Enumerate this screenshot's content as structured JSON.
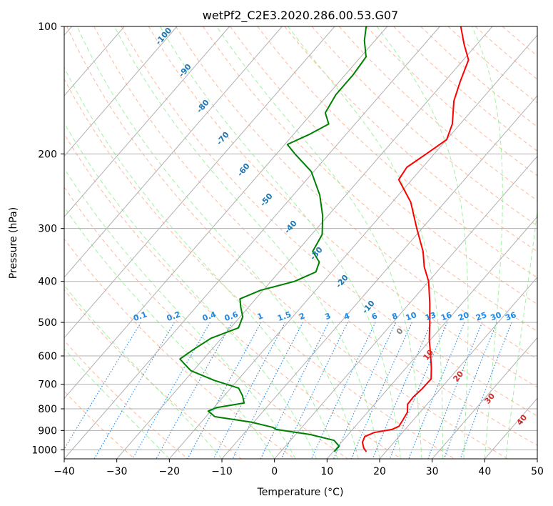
{
  "chart_data": {
    "type": "line",
    "title": "wetPf2_C2E3.2020.286.00.53.G07",
    "xlabel": "Temperature (°C)",
    "ylabel": "Pressure (hPa)",
    "xlim": [
      -40,
      50
    ],
    "ylim": [
      1050,
      100
    ],
    "y_scale": "log",
    "grid": true,
    "x_ticks": [
      -40,
      -30,
      -20,
      -10,
      0,
      10,
      20,
      30,
      40,
      50
    ],
    "y_ticks": [
      100,
      200,
      300,
      400,
      500,
      600,
      700,
      800,
      900,
      1000
    ],
    "series": [
      {
        "role": "temperature",
        "color": "#ff0000",
        "points": [
          {
            "p": 1010,
            "t": 16.3
          },
          {
            "p": 990,
            "t": 15.2
          },
          {
            "p": 960,
            "t": 14.0
          },
          {
            "p": 930,
            "t": 13.5
          },
          {
            "p": 910,
            "t": 14.6
          },
          {
            "p": 895,
            "t": 17.5
          },
          {
            "p": 880,
            "t": 18.3
          },
          {
            "p": 850,
            "t": 18.0
          },
          {
            "p": 815,
            "t": 17.6
          },
          {
            "p": 780,
            "t": 16.3
          },
          {
            "p": 750,
            "t": 16.2
          },
          {
            "p": 720,
            "t": 16.5
          },
          {
            "p": 680,
            "t": 16.6
          },
          {
            "p": 640,
            "t": 14.8
          },
          {
            "p": 600,
            "t": 12.7
          },
          {
            "p": 550,
            "t": 9.8
          },
          {
            "p": 500,
            "t": 7.0
          },
          {
            "p": 450,
            "t": 3.8
          },
          {
            "p": 400,
            "t": 0.0
          },
          {
            "p": 370,
            "t": -3.2
          },
          {
            "p": 340,
            "t": -6.0
          },
          {
            "p": 300,
            "t": -11.0
          },
          {
            "p": 260,
            "t": -16.5
          },
          {
            "p": 230,
            "t": -22.5
          },
          {
            "p": 215,
            "t": -23.0
          },
          {
            "p": 200,
            "t": -21.5
          },
          {
            "p": 185,
            "t": -20.0
          },
          {
            "p": 170,
            "t": -21.5
          },
          {
            "p": 150,
            "t": -25.0
          },
          {
            "p": 135,
            "t": -27.0
          },
          {
            "p": 120,
            "t": -29.0
          },
          {
            "p": 110,
            "t": -32.5
          },
          {
            "p": 100,
            "t": -36.0
          }
        ]
      },
      {
        "role": "dewpoint",
        "color": "#008000",
        "points": [
          {
            "p": 1010,
            "t": 10.2
          },
          {
            "p": 980,
            "t": 10.2
          },
          {
            "p": 950,
            "t": 8.3
          },
          {
            "p": 920,
            "t": 2.8
          },
          {
            "p": 895,
            "t": -4.5
          },
          {
            "p": 885,
            "t": -5.5
          },
          {
            "p": 860,
            "t": -10.5
          },
          {
            "p": 835,
            "t": -18.3
          },
          {
            "p": 810,
            "t": -20.5
          },
          {
            "p": 795,
            "t": -19.5
          },
          {
            "p": 775,
            "t": -15.0
          },
          {
            "p": 745,
            "t": -16.5
          },
          {
            "p": 715,
            "t": -18.5
          },
          {
            "p": 685,
            "t": -24.5
          },
          {
            "p": 650,
            "t": -30.5
          },
          {
            "p": 610,
            "t": -34.5
          },
          {
            "p": 580,
            "t": -33.5
          },
          {
            "p": 545,
            "t": -32.0
          },
          {
            "p": 515,
            "t": -28.5
          },
          {
            "p": 485,
            "t": -29.5
          },
          {
            "p": 460,
            "t": -31.5
          },
          {
            "p": 440,
            "t": -33.0
          },
          {
            "p": 420,
            "t": -30.5
          },
          {
            "p": 400,
            "t": -25.5
          },
          {
            "p": 380,
            "t": -23.0
          },
          {
            "p": 360,
            "t": -24.0
          },
          {
            "p": 340,
            "t": -27.0
          },
          {
            "p": 310,
            "t": -28.0
          },
          {
            "p": 280,
            "t": -31.0
          },
          {
            "p": 250,
            "t": -35.0
          },
          {
            "p": 220,
            "t": -40.5
          },
          {
            "p": 200,
            "t": -46.5
          },
          {
            "p": 190,
            "t": -49.5
          },
          {
            "p": 180,
            "t": -47.0
          },
          {
            "p": 170,
            "t": -45.0
          },
          {
            "p": 160,
            "t": -47.5
          },
          {
            "p": 145,
            "t": -48.5
          },
          {
            "p": 130,
            "t": -48.5
          },
          {
            "p": 118,
            "t": -49.0
          },
          {
            "p": 108,
            "t": -52.0
          },
          {
            "p": 100,
            "t": -54.0
          }
        ]
      }
    ],
    "skew_isotherm_labels": [
      "-100",
      "-90",
      "-80",
      "-70",
      "-60",
      "-50",
      "-40",
      "-30",
      "-20",
      "-10"
    ],
    "mixing_ratio_labels": [
      "0.1",
      "0.2",
      "0.4",
      "0.6",
      "1",
      "1.5",
      "2",
      "3",
      "4",
      "6",
      "8",
      "10",
      "13",
      "16",
      "20",
      "25",
      "30",
      "36"
    ],
    "moist_adiabat_labels": [
      "0",
      "10",
      "20",
      "30",
      "40"
    ]
  },
  "colors": {
    "temperature": "#ff0000",
    "dewpoint": "#008000",
    "grid": "#b0b0b0",
    "isotherm_label": "#1f77b4",
    "mixing_ratio": "#1e88e5",
    "dry_adiabat": "#ffa07a",
    "moist_adiabat": "#90ee90",
    "moist_label": "#d62728"
  }
}
